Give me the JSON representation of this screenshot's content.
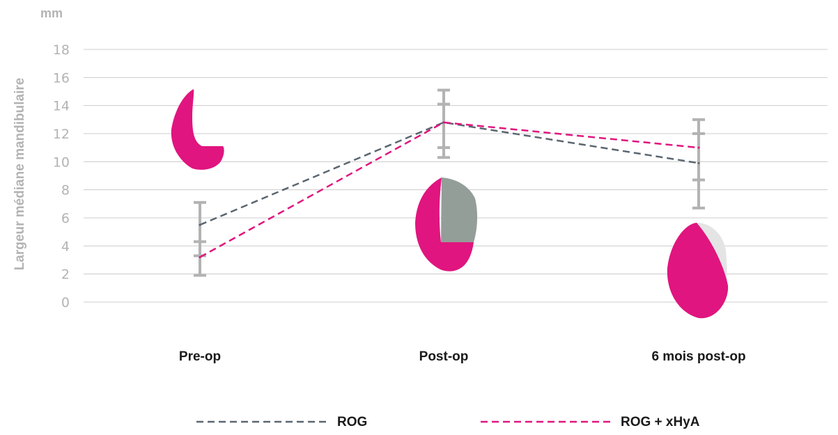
{
  "chart_data": {
    "type": "line",
    "unit_label": "mm",
    "ylabel": "Largeur médiane mandibulaire",
    "xlabel": "",
    "categories": [
      "Pre-op",
      "Post-op",
      "6 mois post-op"
    ],
    "ylim": [
      0,
      18
    ],
    "yticks": [
      0,
      2,
      4,
      6,
      8,
      10,
      12,
      14,
      16,
      18
    ],
    "grid": true,
    "legend_position": "bottom",
    "series": [
      {
        "name": "ROG",
        "color": "#5a6670",
        "style": "dashed",
        "values": [
          5.5,
          12.8,
          9.9
        ],
        "error_low": [
          1.9,
          10.3,
          6.7
        ],
        "error_high": [
          7.1,
          15.1,
          13.0
        ]
      },
      {
        "name": "ROG + xHyA",
        "color": "#e0157f",
        "style": "dashed",
        "values": [
          3.2,
          12.8,
          11.0
        ],
        "error_low": [
          3.3,
          11.0,
          8.7
        ],
        "error_high": [
          4.3,
          14.1,
          12.0
        ]
      }
    ],
    "colors": {
      "accent": "#e0157f",
      "graft": "#939e98",
      "error_bar": "#b3b3b3",
      "grid": "#cccccc"
    },
    "illustrations": [
      "pre-op-ridge-section",
      "post-op-ridge-section",
      "six-month-ridge-section"
    ]
  }
}
